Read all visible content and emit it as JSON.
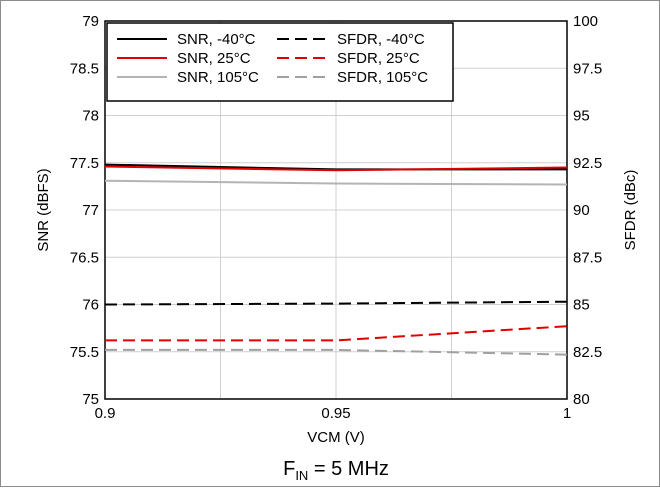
{
  "chart_data": {
    "type": "line",
    "xlabel": "VCM (V)",
    "ylabel_left": "SNR (dBFS)",
    "ylabel_right": "SFDR (dBc)",
    "caption_main": "F",
    "caption_sub": "IN",
    "caption_rest": " = 5 MHz",
    "xlim": [
      0.9,
      1.0
    ],
    "ylim_left": [
      75,
      79
    ],
    "ylim_right": [
      80,
      100
    ],
    "x_ticks": [
      0.9,
      0.95,
      1.0
    ],
    "x_tick_labels": [
      "0.9",
      "0.95",
      "1"
    ],
    "left_ticks": [
      75,
      75.5,
      76,
      76.5,
      77,
      77.5,
      78,
      78.5,
      79
    ],
    "left_tick_labels": [
      "75",
      "75.5",
      "76",
      "76.5",
      "77",
      "77.5",
      "78",
      "78.5",
      "79"
    ],
    "right_ticks": [
      80,
      82.5,
      85,
      87.5,
      90,
      92.5,
      95,
      97.5,
      100
    ],
    "right_tick_labels": [
      "80",
      "82.5",
      "85",
      "87.5",
      "90",
      "92.5",
      "95",
      "97.5",
      "100"
    ],
    "x_minor_grid": [
      0.925,
      0.975
    ],
    "grid": true,
    "legend_position": "top-left",
    "series": [
      {
        "name": "SNR, -40°C",
        "axis": "left",
        "color": "#000000",
        "dash": "solid",
        "x": [
          0.9,
          0.95,
          1.0
        ],
        "y": [
          77.48,
          77.43,
          77.43
        ]
      },
      {
        "name": "SNR, 25°C",
        "axis": "left",
        "color": "#e00000",
        "dash": "solid",
        "x": [
          0.9,
          0.95,
          1.0
        ],
        "y": [
          77.46,
          77.42,
          77.45
        ]
      },
      {
        "name": "SNR, 105°C",
        "axis": "left",
        "color": "#b4b4b4",
        "dash": "solid",
        "x": [
          0.9,
          0.95,
          1.0
        ],
        "y": [
          77.31,
          77.28,
          77.27
        ]
      },
      {
        "name": "SFDR, -40°C",
        "axis": "right",
        "color": "#000000",
        "dash": "dashed",
        "x": [
          0.9,
          0.95,
          1.0
        ],
        "y": [
          85.0,
          85.05,
          85.15
        ]
      },
      {
        "name": "SFDR, 25°C",
        "axis": "right",
        "color": "#e00000",
        "dash": "dashed",
        "x": [
          0.9,
          0.95,
          1.0
        ],
        "y": [
          83.1,
          83.1,
          83.85
        ]
      },
      {
        "name": "SFDR, 105°C",
        "axis": "right",
        "color": "#a0a0a0",
        "dash": "dashed",
        "x": [
          0.9,
          0.95,
          1.0
        ],
        "y": [
          82.6,
          82.6,
          82.35
        ]
      }
    ],
    "legend_order": [
      0,
      3,
      1,
      4,
      2,
      5
    ]
  }
}
